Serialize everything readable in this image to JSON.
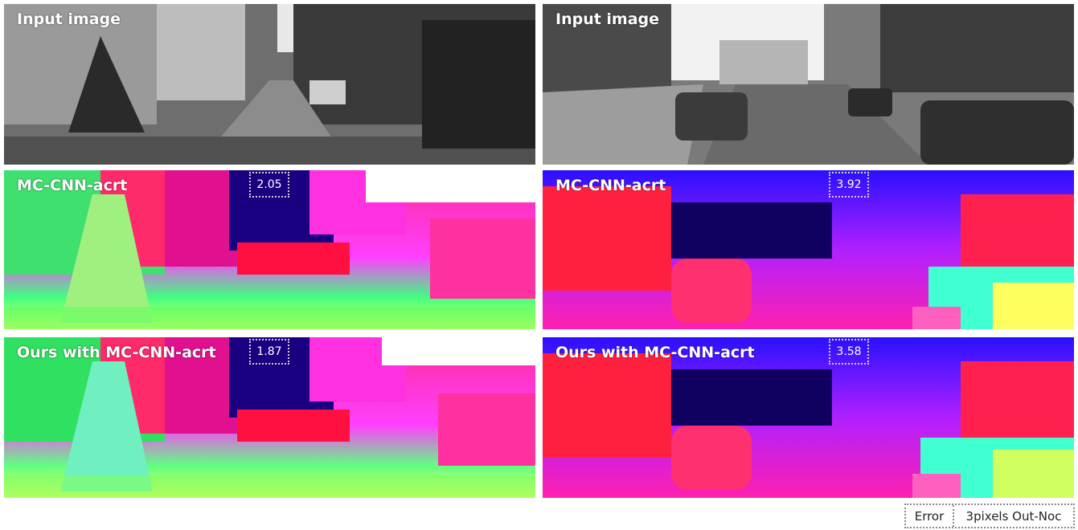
{
  "left": {
    "input": {
      "label": "Input image"
    },
    "baseline": {
      "label": "MC-CNN-acrt",
      "error": "2.05"
    },
    "ours": {
      "label": "Ours with MC-CNN-acrt",
      "error": "1.87"
    }
  },
  "right": {
    "input": {
      "label": "Input image"
    },
    "baseline": {
      "label": "MC-CNN-acrt",
      "error": "3.92"
    },
    "ours": {
      "label": "Ours with MC-CNN-acrt",
      "error": "3.58"
    }
  },
  "legend": {
    "metric": "Error",
    "description": "3pixels Out-Noc"
  }
}
